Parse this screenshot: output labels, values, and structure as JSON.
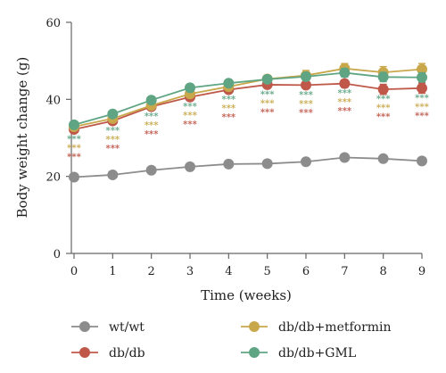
{
  "chart_data": {
    "type": "line",
    "title": "",
    "xlabel": "Time (weeks)",
    "ylabel": "Body weight change (g)",
    "xlim": [
      0,
      9
    ],
    "ylim": [
      0,
      60
    ],
    "x": [
      0,
      1,
      2,
      3,
      4,
      5,
      6,
      7,
      8,
      9
    ],
    "x_ticks": [
      "0",
      "1",
      "2",
      "3",
      "4",
      "5",
      "6",
      "7",
      "8",
      "9"
    ],
    "y_ticks": [
      0,
      20,
      40,
      60
    ],
    "grid": false,
    "legend_position": "bottom",
    "series": [
      {
        "name": "wt/wt",
        "color": "#8c8c8c",
        "values": [
          19.8,
          20.4,
          21.6,
          22.5,
          23.2,
          23.3,
          23.8,
          24.9,
          24.6,
          24.0
        ],
        "error": [
          0.4,
          0.4,
          0.4,
          0.4,
          0.4,
          0.4,
          0.4,
          0.5,
          0.5,
          0.5
        ]
      },
      {
        "name": "db/db",
        "color": "#c0584a",
        "values": [
          32.2,
          34.4,
          38.1,
          40.6,
          42.5,
          43.8,
          43.7,
          44.1,
          42.6,
          42.9
        ],
        "error": [
          0.6,
          0.6,
          0.6,
          0.7,
          0.7,
          0.8,
          0.9,
          1.0,
          1.3,
          1.3
        ]
      },
      {
        "name": "db/db+metformin",
        "color": "#c8a84b",
        "values": [
          32.9,
          35.0,
          38.4,
          41.4,
          43.3,
          45.3,
          46.2,
          48.0,
          47.0,
          47.8
        ],
        "error": [
          0.6,
          0.6,
          0.6,
          0.7,
          0.8,
          0.9,
          1.3,
          1.3,
          1.5,
          1.5
        ]
      },
      {
        "name": "db/db+GML",
        "color": "#5fa584",
        "values": [
          33.4,
          36.2,
          39.8,
          43.0,
          44.2,
          45.2,
          45.9,
          46.9,
          45.8,
          45.7
        ],
        "error": [
          0.6,
          0.6,
          0.6,
          0.7,
          0.8,
          0.9,
          1.0,
          1.1,
          1.2,
          1.2
        ]
      }
    ],
    "annotations": {
      "marker": "***",
      "rows": [
        {
          "color": "#5fa584",
          "x": [
            0,
            1,
            2,
            3,
            4,
            5,
            6,
            7,
            8,
            9
          ]
        },
        {
          "color": "#c8a84b",
          "x": [
            0,
            1,
            2,
            3,
            4,
            5,
            6,
            7,
            8,
            9
          ]
        },
        {
          "color": "#c0584a",
          "x": [
            0,
            1,
            2,
            3,
            4,
            5,
            6,
            7,
            8,
            9
          ]
        }
      ]
    }
  }
}
